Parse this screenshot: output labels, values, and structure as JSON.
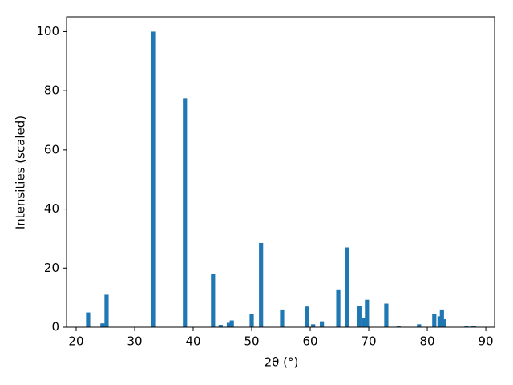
{
  "chart_data": {
    "type": "bar",
    "xlabel": "2θ (°)",
    "ylabel": "Intensities (scaled)",
    "color": "#1f77b4",
    "x": [
      22.05,
      24.5,
      25.2,
      33.15,
      38.6,
      43.4,
      44.7,
      46.1,
      46.6,
      50.0,
      51.6,
      55.2,
      59.45,
      60.5,
      62.0,
      64.8,
      66.3,
      68.4,
      69.2,
      69.7,
      73.0,
      75.1,
      78.6,
      81.2,
      82.1,
      82.5,
      82.9,
      86.7,
      87.7,
      88.0
    ],
    "values": [
      5,
      1.3,
      11,
      100,
      77.5,
      18,
      0.8,
      1.5,
      2.3,
      4.5,
      28.5,
      6,
      7,
      1,
      2,
      12.8,
      27,
      7.3,
      3,
      9.3,
      8,
      0.3,
      1,
      4.5,
      3.7,
      6,
      2.7,
      0.3,
      0.5,
      0.5
    ],
    "xlim": [
      18.36,
      91.5
    ],
    "ylim": [
      0,
      105
    ],
    "xticks": [
      20,
      30,
      40,
      50,
      60,
      70,
      80,
      90
    ],
    "yticks": [
      0,
      20,
      40,
      60,
      80,
      100
    ]
  }
}
